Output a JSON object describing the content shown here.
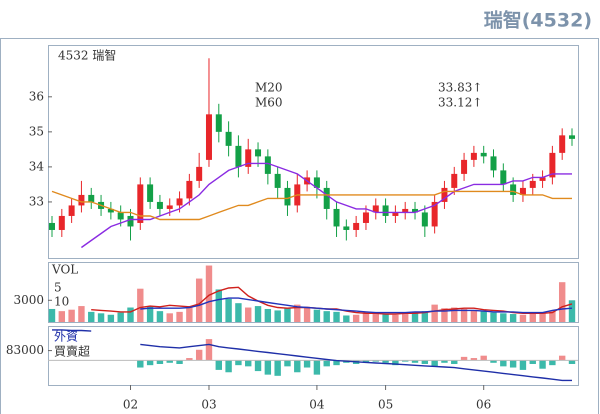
{
  "chart_data": [
    {
      "type": "candlestick",
      "title": "瑞智(4532)",
      "subtitle": "4532 瑞智",
      "up_color": "#e8262a",
      "down_color": "#13a047",
      "categories": [
        null,
        null,
        null,
        null,
        null,
        null,
        null,
        null,
        "02",
        null,
        null,
        null,
        null,
        null,
        null,
        null,
        "03",
        null,
        null,
        null,
        null,
        null,
        null,
        null,
        null,
        null,
        null,
        "04",
        null,
        null,
        null,
        null,
        null,
        null,
        "05",
        null,
        null,
        null,
        null,
        null,
        null,
        null,
        null,
        null,
        "06",
        null,
        null,
        null,
        null,
        null,
        null,
        null,
        null,
        null
      ],
      "open": [
        32.4,
        32.2,
        32.6,
        32.9,
        33.2,
        33.0,
        32.8,
        32.7,
        32.6,
        32.4,
        33.5,
        33.0,
        32.8,
        32.9,
        33.1,
        33.6,
        34.2,
        35.5,
        35.0,
        34.6,
        34.0,
        34.5,
        34.3,
        33.8,
        33.4,
        32.9,
        33.5,
        33.7,
        33.4,
        32.8,
        32.3,
        32.2,
        32.4,
        32.7,
        32.9,
        32.6,
        32.7,
        32.8,
        32.7,
        32.3,
        33.0,
        33.4,
        33.8,
        34.2,
        34.4,
        34.3,
        33.9,
        33.5,
        33.2,
        33.4,
        33.6,
        33.7,
        34.4,
        34.9
      ],
      "high": [
        32.6,
        32.8,
        33.1,
        33.6,
        33.4,
        33.2,
        33.0,
        32.9,
        32.8,
        33.7,
        33.7,
        33.2,
        33.1,
        33.3,
        33.8,
        34.4,
        37.1,
        35.8,
        35.3,
        34.9,
        34.8,
        34.7,
        34.5,
        34.0,
        33.6,
        33.8,
        33.9,
        33.9,
        33.6,
        33.0,
        32.5,
        32.6,
        32.9,
        33.1,
        33.1,
        32.9,
        33.0,
        33.0,
        32.9,
        33.2,
        33.6,
        34.0,
        34.4,
        34.6,
        34.6,
        34.5,
        34.1,
        33.7,
        33.6,
        33.8,
        33.9,
        34.6,
        35.1,
        35.1
      ],
      "low": [
        32.0,
        32.0,
        32.4,
        32.7,
        32.8,
        32.6,
        32.5,
        32.3,
        31.9,
        32.2,
        32.8,
        32.6,
        32.6,
        32.7,
        32.9,
        33.4,
        34.0,
        34.7,
        34.3,
        33.7,
        33.8,
        34.0,
        33.5,
        33.1,
        32.6,
        32.7,
        33.3,
        33.1,
        32.5,
        32.0,
        31.9,
        32.0,
        32.2,
        32.5,
        32.4,
        32.4,
        32.5,
        32.5,
        32.0,
        32.1,
        32.8,
        33.2,
        33.6,
        34.0,
        34.1,
        33.7,
        33.3,
        33.0,
        33.0,
        33.2,
        33.4,
        33.5,
        34.2,
        34.6
      ],
      "close": [
        32.2,
        32.6,
        32.9,
        33.2,
        33.0,
        32.8,
        32.7,
        32.5,
        32.3,
        33.5,
        33.0,
        32.8,
        32.9,
        33.1,
        33.6,
        34.0,
        35.5,
        35.0,
        34.6,
        34.0,
        34.5,
        34.3,
        33.8,
        33.4,
        32.9,
        33.5,
        33.7,
        33.4,
        32.8,
        32.3,
        32.2,
        32.4,
        32.7,
        32.9,
        32.6,
        32.7,
        32.8,
        32.7,
        32.3,
        33.0,
        33.4,
        33.8,
        34.2,
        34.4,
        34.3,
        33.9,
        33.5,
        33.2,
        33.4,
        33.6,
        33.7,
        34.4,
        34.9,
        34.8
      ],
      "ylim": [
        31.4,
        37.45
      ],
      "yticks": [
        33,
        34,
        35,
        36
      ],
      "series": [
        {
          "name": "M20",
          "color": "#8a2be2",
          "last_label": "33.83↑",
          "values": [
            null,
            null,
            null,
            31.7,
            31.9,
            32.1,
            32.3,
            32.4,
            32.5,
            32.5,
            32.5,
            32.6,
            32.7,
            32.8,
            33.0,
            33.2,
            33.5,
            33.7,
            33.9,
            34.0,
            34.1,
            34.1,
            34.1,
            34.0,
            33.9,
            33.8,
            33.6,
            33.4,
            33.2,
            33.0,
            32.9,
            32.8,
            32.8,
            32.7,
            32.7,
            32.7,
            32.7,
            32.7,
            32.8,
            32.9,
            33.1,
            33.3,
            33.4,
            33.5,
            33.5,
            33.5,
            33.5,
            33.6,
            33.6,
            33.7,
            33.7,
            33.8,
            33.8,
            33.8
          ]
        },
        {
          "name": "M60",
          "color": "#e08a1e",
          "last_label": "33.12↑",
          "values": [
            33.3,
            33.2,
            33.1,
            33.0,
            33.0,
            32.9,
            32.8,
            32.7,
            32.7,
            32.6,
            32.6,
            32.5,
            32.5,
            32.5,
            32.5,
            32.5,
            32.6,
            32.7,
            32.8,
            32.9,
            32.9,
            33.0,
            33.1,
            33.1,
            33.1,
            33.2,
            33.2,
            33.2,
            33.2,
            33.2,
            33.2,
            33.2,
            33.2,
            33.2,
            33.2,
            33.2,
            33.2,
            33.2,
            33.2,
            33.2,
            33.3,
            33.3,
            33.3,
            33.3,
            33.3,
            33.3,
            33.3,
            33.3,
            33.2,
            33.2,
            33.2,
            33.1,
            33.1,
            33.1
          ]
        }
      ]
    },
    {
      "type": "bar",
      "title": "VOL",
      "up_color": "#f08c8c",
      "down_color": "#3cb9aa",
      "values": [
        1800,
        1500,
        1700,
        2200,
        1400,
        1200,
        1000,
        1300,
        2000,
        4600,
        2200,
        1500,
        1200,
        1400,
        2200,
        6000,
        7800,
        4500,
        3200,
        2600,
        2000,
        2200,
        1800,
        1600,
        2000,
        2400,
        2100,
        1700,
        1500,
        1400,
        900,
        1000,
        1200,
        1300,
        1100,
        1000,
        1200,
        1400,
        1500,
        2400,
        1900,
        2000,
        1800,
        1600,
        1500,
        1300,
        1200,
        1100,
        1000,
        1200,
        1300,
        1500,
        5500,
        3000
      ],
      "ylim": [
        0,
        8150
      ],
      "yticks": [
        3000
      ],
      "series": [
        {
          "name": "5",
          "color": "#d0201c",
          "values": [
            null,
            null,
            null,
            null,
            1700,
            1600,
            1500,
            1400,
            1400,
            2000,
            2200,
            2100,
            2300,
            2200,
            2100,
            2500,
            3700,
            4300,
            4700,
            4800,
            3600,
            2900,
            2300,
            2000,
            1900,
            2000,
            2000,
            1900,
            1800,
            1800,
            1500,
            1300,
            1200,
            1200,
            1100,
            1100,
            1200,
            1200,
            1300,
            1500,
            1700,
            1800,
            1900,
            1900,
            1700,
            1600,
            1500,
            1300,
            1200,
            1200,
            1200,
            1300,
            2100,
            2500
          ]
        },
        {
          "name": "10",
          "color": "#2233bb",
          "values": [
            null,
            null,
            null,
            null,
            null,
            null,
            null,
            null,
            null,
            1800,
            1900,
            1900,
            1900,
            1900,
            2000,
            2300,
            2800,
            3100,
            3300,
            3300,
            3100,
            2900,
            2700,
            2500,
            2300,
            2100,
            2000,
            1900,
            1800,
            1700,
            1600,
            1500,
            1400,
            1300,
            1300,
            1300,
            1300,
            1400,
            1400,
            1500,
            1500,
            1600,
            1600,
            1600,
            1500,
            1400,
            1400,
            1400,
            1300,
            1300,
            1300,
            1600,
            1800,
            1900
          ]
        }
      ]
    },
    {
      "type": "bar",
      "title": "外資",
      "subtitle": "買賣超",
      "up_color": "#f08c8c",
      "down_color": "#3cb9aa",
      "values": [
        null,
        null,
        null,
        null,
        null,
        null,
        null,
        null,
        null,
        -60000,
        -40000,
        -30000,
        -20000,
        -30000,
        20000,
        90000,
        180000,
        -80000,
        -100000,
        -40000,
        -50000,
        -90000,
        -120000,
        -130000,
        -50000,
        -100000,
        -60000,
        -120000,
        -50000,
        -40000,
        -20000,
        -30000,
        -20000,
        -10000,
        -20000,
        -40000,
        -10000,
        -20000,
        -30000,
        -50000,
        -20000,
        -30000,
        30000,
        20000,
        40000,
        -20000,
        -50000,
        -60000,
        -80000,
        -30000,
        -70000,
        -40000,
        40000,
        -30000
      ],
      "ylim": [
        -207500,
        282200
      ],
      "yticks": [
        83000
      ],
      "y2lim": [
        0,
        100
      ],
      "series": [
        {
          "color": "#1f2fa8",
          "axis": "y2",
          "values": [
            95,
            95,
            94,
            94,
            93,
            null,
            null,
            null,
            null,
            70,
            68,
            66,
            65,
            64,
            66,
            68,
            70,
            66,
            64,
            62,
            60,
            58,
            56,
            54,
            52,
            50,
            48,
            46,
            44,
            42,
            41,
            40,
            39,
            38,
            37,
            36,
            35,
            34,
            33,
            32,
            31,
            30,
            28,
            26,
            24,
            22,
            20,
            18,
            16,
            14,
            12,
            10,
            8,
            8
          ]
        }
      ]
    }
  ]
}
